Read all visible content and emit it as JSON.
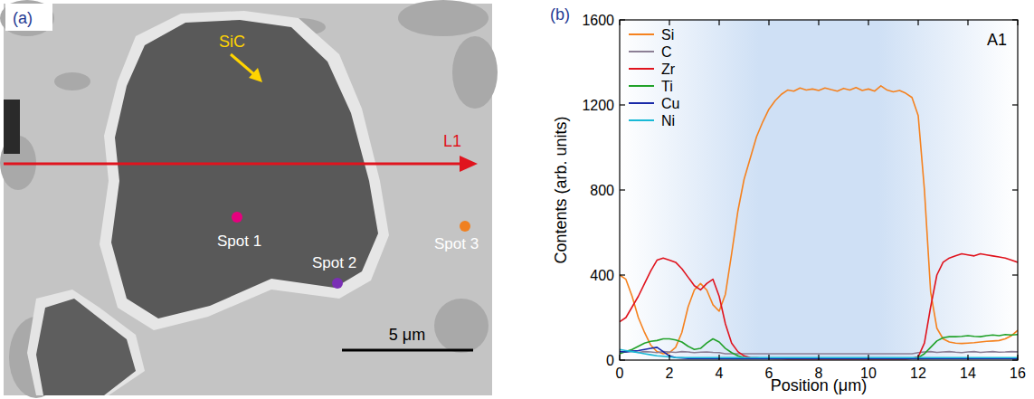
{
  "image_panel": {
    "panel_label": "(a)",
    "phase_label": "SiC",
    "line_label": "L1",
    "spots": [
      "Spot 1",
      "Spot 2",
      "Spot 3"
    ],
    "scale_bar": "5 μm"
  },
  "chart_data": {
    "type": "line",
    "panel_label": "(b)",
    "title": "A1",
    "x_label": "Position (μm)",
    "y_label": "Contents (arb. units)",
    "xlim": [
      0,
      16
    ],
    "xticks": [
      0,
      2,
      4,
      6,
      8,
      10,
      12,
      14,
      16
    ],
    "ylim": [
      0,
      1600
    ],
    "yticks": [
      0,
      400,
      800,
      1200,
      1600
    ],
    "legend": "upper left",
    "grid": false,
    "x": [
      0,
      0.25,
      0.5,
      0.75,
      1,
      1.25,
      1.5,
      1.75,
      2,
      2.25,
      2.5,
      2.75,
      3,
      3.25,
      3.5,
      3.75,
      4,
      4.25,
      4.5,
      4.75,
      5,
      5.25,
      5.5,
      5.75,
      6,
      6.25,
      6.5,
      6.75,
      7,
      7.25,
      7.5,
      7.75,
      8,
      8.25,
      8.5,
      8.75,
      9,
      9.25,
      9.5,
      9.75,
      10,
      10.25,
      10.5,
      10.75,
      11,
      11.25,
      11.5,
      11.75,
      12,
      12.25,
      12.5,
      12.75,
      13,
      13.25,
      13.5,
      13.75,
      14,
      14.25,
      14.5,
      14.75,
      15,
      15.25,
      15.5,
      15.75,
      16
    ],
    "series": [
      {
        "name": "Si",
        "color": "#f5821f",
        "values": [
          400,
          380,
          300,
          200,
          130,
          70,
          40,
          30,
          35,
          60,
          130,
          250,
          330,
          360,
          330,
          260,
          230,
          310,
          500,
          700,
          850,
          950,
          1050,
          1120,
          1180,
          1220,
          1250,
          1270,
          1265,
          1280,
          1270,
          1275,
          1268,
          1280,
          1272,
          1265,
          1278,
          1270,
          1282,
          1268,
          1275,
          1265,
          1290,
          1270,
          1262,
          1268,
          1255,
          1235,
          1150,
          800,
          320,
          150,
          100,
          85,
          80,
          78,
          80,
          82,
          85,
          88,
          90,
          92,
          100,
          115,
          140
        ]
      },
      {
        "name": "C",
        "color": "#8c7f95",
        "values": [
          40,
          38,
          42,
          36,
          40,
          38,
          35,
          40,
          38,
          36,
          40,
          38,
          35,
          37,
          38,
          36,
          35,
          30,
          30,
          30,
          30,
          30,
          30,
          30,
          30,
          30,
          30,
          30,
          30,
          30,
          30,
          30,
          30,
          30,
          30,
          30,
          30,
          30,
          30,
          30,
          30,
          30,
          30,
          30,
          30,
          30,
          30,
          30,
          35,
          38,
          40,
          36,
          38,
          40,
          37,
          35,
          38,
          40,
          36,
          38,
          40,
          37,
          38,
          40,
          39
        ]
      },
      {
        "name": "Zr",
        "color": "#e0141e",
        "values": [
          180,
          200,
          250,
          300,
          360,
          420,
          470,
          480,
          470,
          460,
          430,
          390,
          350,
          330,
          360,
          380,
          300,
          170,
          80,
          40,
          20,
          12,
          10,
          8,
          8,
          7,
          7,
          6,
          6,
          6,
          6,
          6,
          6,
          6,
          6,
          6,
          6,
          6,
          6,
          6,
          6,
          6,
          6,
          6,
          6,
          6,
          6,
          8,
          15,
          80,
          250,
          400,
          460,
          480,
          490,
          500,
          495,
          490,
          500,
          495,
          490,
          485,
          480,
          470,
          460
        ]
      },
      {
        "name": "Ti",
        "color": "#22a22a",
        "values": [
          30,
          40,
          50,
          65,
          80,
          88,
          92,
          100,
          100,
          95,
          85,
          65,
          50,
          55,
          80,
          100,
          85,
          55,
          35,
          20,
          12,
          8,
          8,
          8,
          8,
          8,
          8,
          8,
          8,
          8,
          8,
          8,
          8,
          8,
          8,
          8,
          8,
          8,
          8,
          8,
          8,
          8,
          8,
          8,
          8,
          8,
          8,
          8,
          12,
          30,
          60,
          90,
          105,
          110,
          110,
          112,
          115,
          112,
          110,
          115,
          118,
          115,
          120,
          118,
          120
        ]
      },
      {
        "name": "Cu",
        "color": "#1a2aa8",
        "values": [
          40,
          38,
          42,
          45,
          50,
          55,
          60,
          40,
          20,
          12,
          10,
          8,
          8,
          8,
          8,
          8,
          8,
          8,
          8,
          8,
          8,
          8,
          8,
          8,
          8,
          8,
          8,
          8,
          8,
          8,
          8,
          8,
          8,
          8,
          8,
          8,
          8,
          8,
          8,
          8,
          8,
          8,
          8,
          8,
          8,
          8,
          8,
          8,
          8,
          8,
          8,
          8,
          8,
          8,
          8,
          8,
          8,
          8,
          8,
          8,
          8,
          8,
          8,
          8,
          8
        ]
      },
      {
        "name": "Ni",
        "color": "#19b9d6",
        "values": [
          50,
          45,
          40,
          35,
          30,
          25,
          20,
          18,
          15,
          12,
          12,
          12,
          12,
          12,
          12,
          12,
          12,
          12,
          12,
          12,
          12,
          12,
          12,
          12,
          12,
          12,
          12,
          12,
          12,
          12,
          12,
          12,
          12,
          12,
          12,
          12,
          12,
          12,
          12,
          12,
          12,
          12,
          12,
          12,
          12,
          12,
          12,
          12,
          12,
          12,
          12,
          12,
          12,
          12,
          12,
          12,
          12,
          12,
          12,
          12,
          12,
          12,
          12,
          12,
          12
        ]
      }
    ]
  }
}
